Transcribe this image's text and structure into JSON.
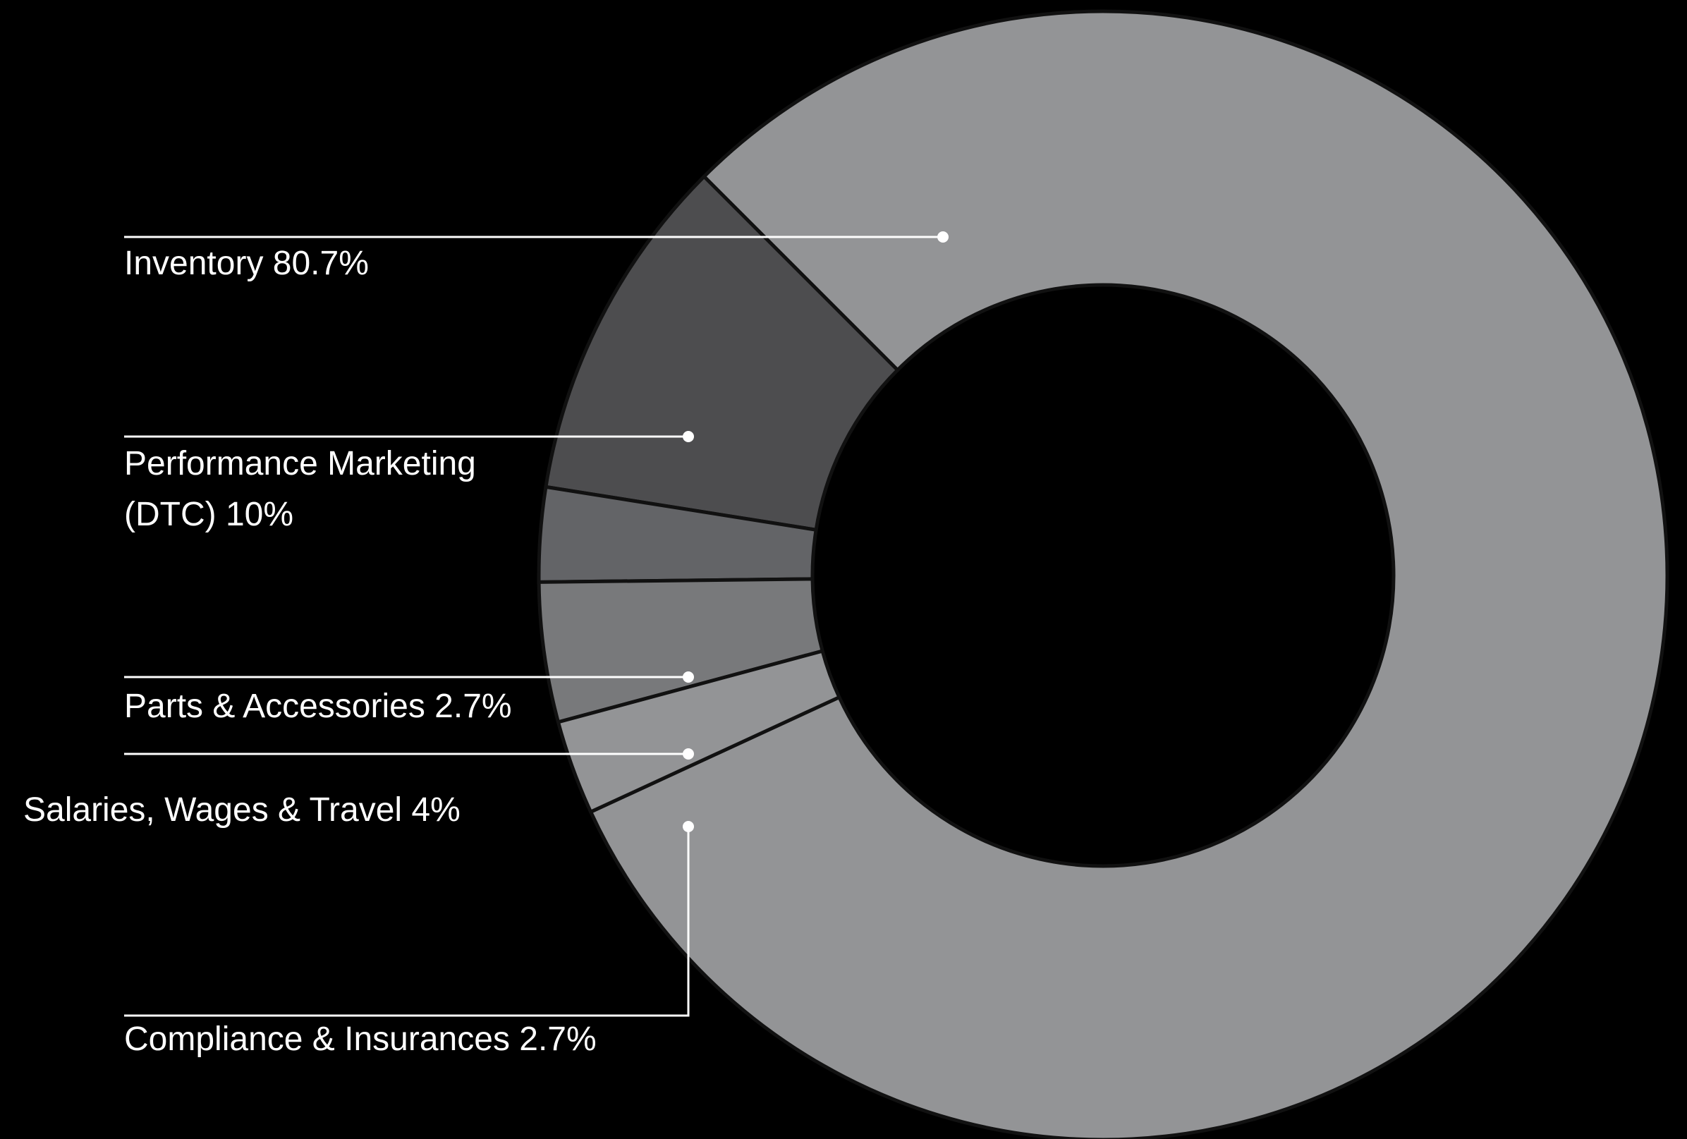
{
  "chart_data": {
    "type": "pie",
    "variant": "donut",
    "background": "#000000",
    "line_color": "#ffffff",
    "slice_border_color": "#111111",
    "slices": [
      {
        "label": "Inventory",
        "value": 80.7,
        "display": "80.7%",
        "label_lines": [
          "Inventory 80.7%"
        ],
        "color": "#939496"
      },
      {
        "label": "Performance Marketing (DTC)",
        "value": 10,
        "display": "10%",
        "label_lines": [
          "Performance Marketing",
          "(DTC) 10%"
        ],
        "color": "#4d4d4f"
      },
      {
        "label": "Parts & Accessories",
        "value": 2.7,
        "display": "2.7%",
        "label_lines": [
          "Parts & Accessories 2.7%"
        ],
        "color": "#636467"
      },
      {
        "label": "Salaries, Wages & Travel",
        "value": 4,
        "display": "4%",
        "label_lines": [
          "Salaries, Wages & Travel 4%"
        ],
        "color": "#78797b"
      },
      {
        "label": "Compliance & Insurances",
        "value": 2.7,
        "display": "2.7%",
        "label_lines": [
          "Compliance & Insurances 2.7%"
        ],
        "color": "#939496"
      }
    ]
  }
}
